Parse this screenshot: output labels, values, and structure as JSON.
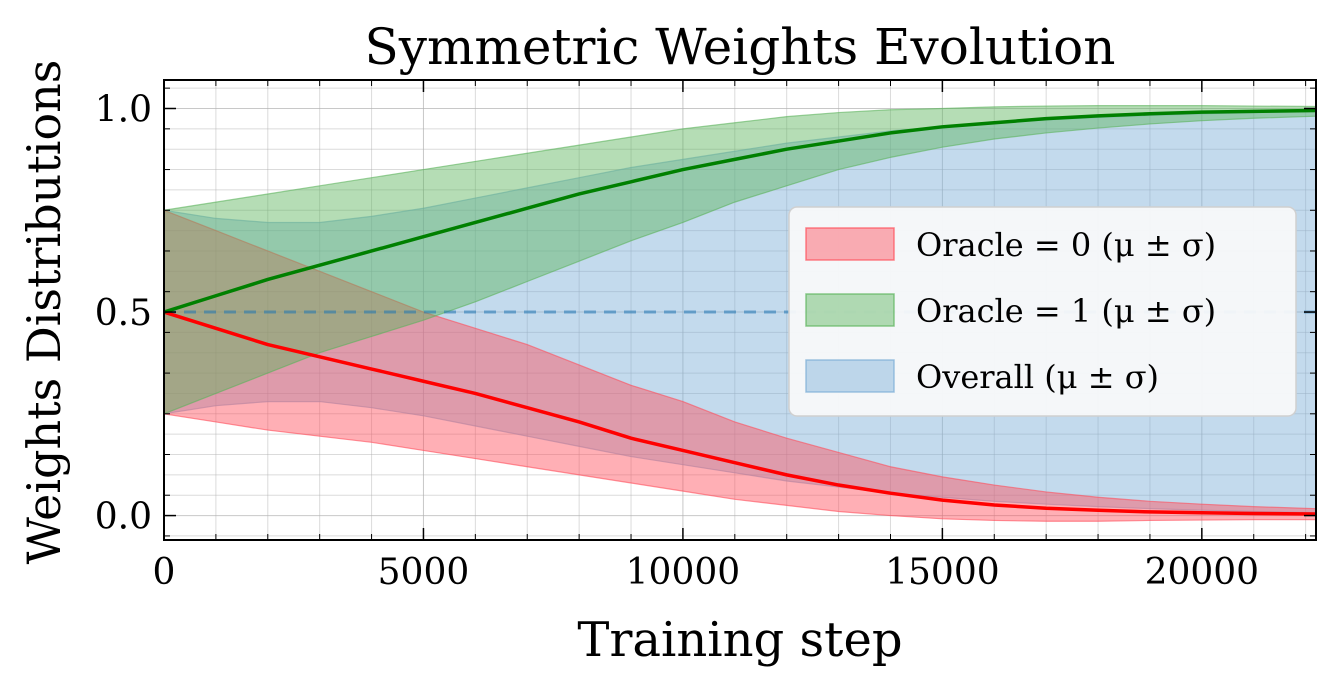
{
  "chart_data": {
    "type": "area",
    "title": "Symmetric Weights Evolution",
    "xlabel": "Training step",
    "ylabel": "Weights Distributions",
    "xlim": [
      0,
      22200
    ],
    "ylim": [
      -0.06,
      1.07
    ],
    "xticks": [
      "0",
      "5000",
      "10000",
      "15000",
      "20000"
    ],
    "yticks": [
      "0.0",
      "0.5",
      "1.0"
    ],
    "grid": true,
    "legend_position": "center-right",
    "reference_line": {
      "y": 0.5,
      "style": "dashed",
      "color": "#1f77b4"
    },
    "x": [
      0,
      1000,
      2000,
      3000,
      4000,
      5000,
      6000,
      7000,
      8000,
      9000,
      10000,
      11000,
      12000,
      13000,
      14000,
      15000,
      16000,
      17000,
      18000,
      19000,
      20000,
      21000,
      22200
    ],
    "series": [
      {
        "name": "Oracle = 0 (μ ± σ)",
        "fill_color": "#ff4d5a",
        "line_color": "#ff0000",
        "mean": [
          0.5,
          0.46,
          0.42,
          0.39,
          0.36,
          0.33,
          0.3,
          0.265,
          0.23,
          0.19,
          0.16,
          0.13,
          0.1,
          0.075,
          0.055,
          0.038,
          0.026,
          0.018,
          0.013,
          0.009,
          0.007,
          0.005,
          0.004
        ],
        "upper": [
          0.75,
          0.7,
          0.65,
          0.6,
          0.55,
          0.5,
          0.46,
          0.42,
          0.37,
          0.32,
          0.28,
          0.23,
          0.19,
          0.155,
          0.12,
          0.095,
          0.075,
          0.058,
          0.045,
          0.035,
          0.028,
          0.022,
          0.017
        ],
        "lower": [
          0.25,
          0.23,
          0.21,
          0.195,
          0.18,
          0.16,
          0.14,
          0.12,
          0.1,
          0.08,
          0.06,
          0.04,
          0.025,
          0.01,
          0.0,
          -0.008,
          -0.012,
          -0.014,
          -0.014,
          -0.012,
          -0.011,
          -0.01,
          -0.01
        ]
      },
      {
        "name": "Oracle = 1 (μ ± σ)",
        "fill_color": "#5cb35c",
        "line_color": "#008000",
        "mean": [
          0.5,
          0.54,
          0.58,
          0.615,
          0.65,
          0.685,
          0.72,
          0.755,
          0.79,
          0.82,
          0.85,
          0.875,
          0.9,
          0.92,
          0.94,
          0.955,
          0.965,
          0.975,
          0.982,
          0.987,
          0.991,
          0.993,
          0.995
        ],
        "upper": [
          0.75,
          0.77,
          0.79,
          0.81,
          0.83,
          0.85,
          0.87,
          0.89,
          0.91,
          0.93,
          0.95,
          0.965,
          0.98,
          0.99,
          0.997,
          1.0,
          1.004,
          1.006,
          1.007,
          1.007,
          1.007,
          1.006,
          1.005
        ],
        "lower": [
          0.25,
          0.3,
          0.35,
          0.4,
          0.44,
          0.48,
          0.525,
          0.575,
          0.625,
          0.675,
          0.72,
          0.77,
          0.81,
          0.85,
          0.88,
          0.905,
          0.925,
          0.94,
          0.952,
          0.962,
          0.97,
          0.976,
          0.981
        ]
      },
      {
        "name": "Overall (μ ± σ)",
        "fill_color": "#7aadd6",
        "line_color": "#1f77b4",
        "mean": [
          0.5,
          0.5,
          0.5,
          0.5,
          0.5,
          0.5,
          0.5,
          0.5,
          0.5,
          0.5,
          0.5,
          0.5,
          0.5,
          0.5,
          0.5,
          0.5,
          0.5,
          0.5,
          0.5,
          0.5,
          0.5,
          0.5,
          0.5
        ],
        "upper": [
          0.75,
          0.73,
          0.72,
          0.72,
          0.735,
          0.755,
          0.78,
          0.805,
          0.83,
          0.855,
          0.875,
          0.895,
          0.915,
          0.93,
          0.945,
          0.955,
          0.965,
          0.972,
          0.978,
          0.983,
          0.987,
          0.99,
          0.993
        ],
        "lower": [
          0.25,
          0.27,
          0.28,
          0.28,
          0.265,
          0.245,
          0.22,
          0.195,
          0.17,
          0.145,
          0.125,
          0.105,
          0.085,
          0.07,
          0.055,
          0.045,
          0.035,
          0.028,
          0.022,
          0.017,
          0.013,
          0.01,
          0.007
        ]
      }
    ]
  }
}
